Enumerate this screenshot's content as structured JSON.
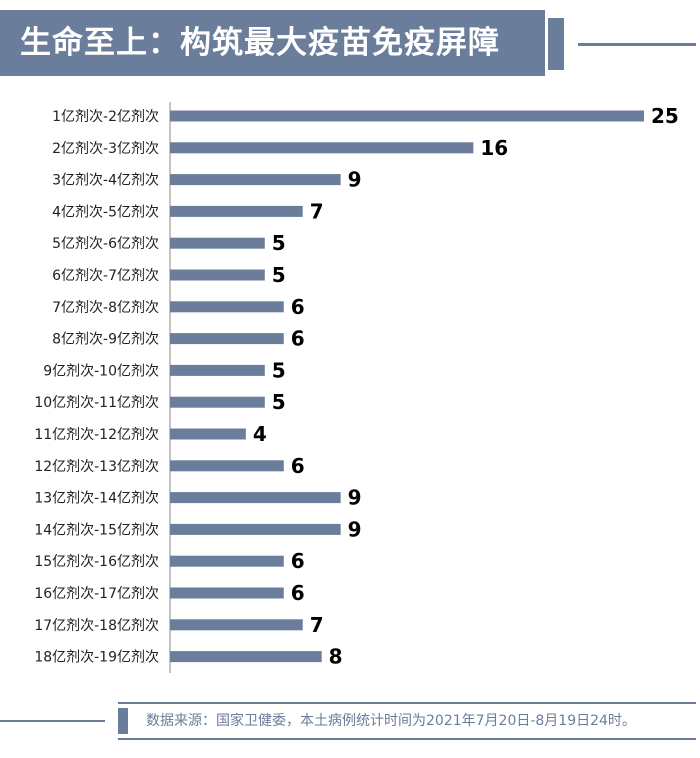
{
  "header": {
    "title": "生命至上：构筑最大疫苗免疫屏障"
  },
  "colors": {
    "accent": "#6a7d9a",
    "bar": "#6a7d9a",
    "axis": "#888888"
  },
  "chart_data": {
    "type": "bar",
    "orientation": "horizontal",
    "title": "",
    "xlabel": "",
    "ylabel": "",
    "categories": [
      "1亿剂次-2亿剂次",
      "2亿剂次-3亿剂次",
      "3亿剂次-4亿剂次",
      "4亿剂次-5亿剂次",
      "5亿剂次-6亿剂次",
      "6亿剂次-7亿剂次",
      "7亿剂次-8亿剂次",
      "8亿剂次-9亿剂次",
      "9亿剂次-10亿剂次",
      "10亿剂次-11亿剂次",
      "11亿剂次-12亿剂次",
      "12亿剂次-13亿剂次",
      "13亿剂次-14亿剂次",
      "14亿剂次-15亿剂次",
      "15亿剂次-16亿剂次",
      "16亿剂次-17亿剂次",
      "17亿剂次-18亿剂次",
      "18亿剂次-19亿剂次"
    ],
    "values": [
      25,
      16,
      9,
      7,
      5,
      5,
      6,
      6,
      5,
      5,
      4,
      6,
      9,
      9,
      6,
      6,
      7,
      8
    ],
    "xlim": [
      0,
      25
    ],
    "grid": false,
    "legend": "none"
  },
  "footer": {
    "source": "数据来源：国家卫健委，本土病例统计时间为2021年7月20日-8月19日24时。"
  }
}
